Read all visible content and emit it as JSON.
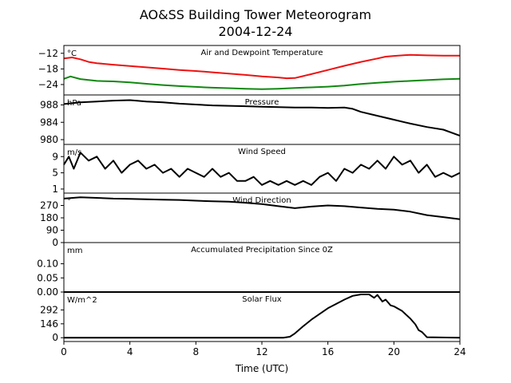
{
  "title_line1": "AO&SS Building Tower Meteorogram",
  "title_line2": "2004-12-24",
  "chart_data": {
    "type": "line",
    "x_axis": {
      "label": "Time (UTC)",
      "range": [
        0,
        24
      ],
      "ticks": [
        0,
        4,
        8,
        12,
        16,
        20,
        24
      ],
      "tick_labels": [
        "0",
        "4",
        "8",
        "12",
        "16",
        "20",
        "24"
      ]
    },
    "panels": [
      {
        "title": "Air and Dewpoint Temperature",
        "unit": "°C",
        "ylim": [
          -28,
          -9
        ],
        "yticks": [
          -12,
          -18,
          -24
        ],
        "ytick_labels": [
          "−12",
          "−18",
          "−24"
        ],
        "series": [
          {
            "color": "#ee1111",
            "x": [
              0,
              0.5,
              1,
              1.5,
              2,
              3,
              4,
              5,
              6,
              7,
              8,
              9,
              10,
              11,
              12,
              13,
              13.5,
              14,
              15,
              16,
              17,
              18,
              19,
              19.5,
              20,
              21,
              22,
              23,
              24
            ],
            "y": [
              -14,
              -13.6,
              -14.3,
              -15.3,
              -15.8,
              -16.4,
              -16.9,
              -17.4,
              -17.9,
              -18.4,
              -18.8,
              -19.3,
              -19.8,
              -20.3,
              -20.9,
              -21.3,
              -21.6,
              -21.5,
              -20.0,
              -18.4,
              -16.8,
              -15.3,
              -14.0,
              -13.3,
              -13.0,
              -12.6,
              -12.8,
              -12.9,
              -12.9
            ]
          },
          {
            "color": "#118811",
            "x": [
              0,
              0.4,
              1,
              2,
              3,
              4,
              5,
              6,
              7,
              8,
              9,
              10,
              11,
              12,
              13,
              14,
              15,
              16,
              17,
              18,
              19,
              20,
              21,
              22,
              23,
              24
            ],
            "y": [
              -21.8,
              -20.9,
              -21.9,
              -22.6,
              -22.8,
              -23.2,
              -23.7,
              -24.2,
              -24.6,
              -24.9,
              -25.2,
              -25.4,
              -25.6,
              -25.8,
              -25.6,
              -25.3,
              -25.1,
              -24.8,
              -24.4,
              -23.8,
              -23.3,
              -22.9,
              -22.6,
              -22.3,
              -22.0,
              -21.8
            ]
          }
        ]
      },
      {
        "title": "Pressure",
        "unit": "hPa",
        "ylim": [
          978.9,
          990.3
        ],
        "yticks": [
          988,
          984,
          980
        ],
        "ytick_labels": [
          "988",
          "984",
          "980"
        ],
        "series": [
          {
            "color": "#000000",
            "x": [
              0,
              1,
              2,
              3,
              4,
              5,
              6,
              7,
              8,
              9,
              10,
              11,
              12,
              13,
              14,
              15,
              16,
              17,
              17.5,
              18,
              19,
              20,
              21,
              22,
              23,
              24
            ],
            "y": [
              988.2,
              988.6,
              988.8,
              989.0,
              989.1,
              988.8,
              988.6,
              988.3,
              988.1,
              987.9,
              987.8,
              987.7,
              987.6,
              987.5,
              987.4,
              987.4,
              987.3,
              987.4,
              987.1,
              986.4,
              985.5,
              984.6,
              983.7,
              982.9,
              982.3,
              980.9
            ]
          }
        ]
      },
      {
        "title": "Wind Speed",
        "unit": "m/s",
        "ylim": [
          0,
          12
        ],
        "yticks": [
          9,
          5,
          1
        ],
        "ytick_labels": [
          "9",
          "5",
          "1"
        ],
        "series": [
          {
            "color": "#000000",
            "x": [
              0,
              0.3,
              0.6,
              1,
              1.5,
              2,
              2.5,
              3,
              3.5,
              4,
              4.5,
              5,
              5.5,
              6,
              6.5,
              7,
              7.5,
              8,
              8.5,
              9,
              9.5,
              10,
              10.5,
              11,
              11.5,
              12,
              12.5,
              13,
              13.5,
              14,
              14.5,
              15,
              15.5,
              16,
              16.5,
              17,
              17.5,
              18,
              18.5,
              19,
              19.5,
              20,
              20.5,
              21,
              21.5,
              22,
              22.5,
              23,
              23.5,
              24
            ],
            "y": [
              7,
              9,
              6,
              10,
              8,
              9,
              6,
              8,
              5,
              7,
              8,
              6,
              7,
              5,
              6,
              4,
              6,
              5,
              4,
              6,
              4,
              5,
              3,
              3,
              4,
              2,
              3,
              2,
              3,
              2,
              3,
              2,
              4,
              5,
              3,
              6,
              5,
              7,
              6,
              8,
              6,
              9,
              7,
              8,
              5,
              7,
              4,
              5,
              4,
              5
            ]
          }
        ]
      },
      {
        "title": "Wind Direction",
        "unit": "°",
        "ylim": [
          0,
          360
        ],
        "yticks": [
          270,
          180,
          90,
          0
        ],
        "ytick_labels": [
          "270",
          "180",
          "90",
          "0"
        ],
        "series": [
          {
            "color": "#000000",
            "x": [
              0,
              1,
              2,
              3,
              4,
              5,
              6,
              7,
              8,
              9,
              10,
              11,
              12,
              13,
              14,
              15,
              16,
              17,
              18,
              19,
              20,
              21,
              22,
              23,
              24
            ],
            "y": [
              320,
              330,
              325,
              320,
              318,
              315,
              312,
              310,
              305,
              300,
              298,
              290,
              280,
              265,
              250,
              262,
              270,
              265,
              255,
              245,
              240,
              225,
              200,
              185,
              170
            ]
          }
        ]
      },
      {
        "title": "Accumulated Precipitation Since 0Z",
        "unit": "mm",
        "ylim": [
          0,
          0.175
        ],
        "yticks": [
          0.1,
          0.05,
          0.0
        ],
        "ytick_labels": [
          "0.10",
          "0.05",
          "0.00"
        ],
        "series": [
          {
            "color": "#000000",
            "x": [
              0,
              24
            ],
            "y": [
              0,
              0
            ]
          }
        ]
      },
      {
        "title": "Solar Flux",
        "unit": "W/m^2",
        "ylim": [
          -40,
          480
        ],
        "yticks": [
          292,
          146,
          0
        ],
        "ytick_labels": [
          "292",
          "146",
          "0"
        ],
        "series": [
          {
            "color": "#000000",
            "x": [
              0,
              13.3,
              13.7,
              14,
              14.5,
              15,
              16,
              17,
              17.5,
              18,
              18.5,
              18.8,
              19,
              19.3,
              19.5,
              19.8,
              20,
              20.5,
              21,
              21.3,
              21.5,
              21.7,
              22,
              24
            ],
            "y": [
              0,
              0,
              10,
              45,
              120,
              190,
              310,
              400,
              440,
              455,
              455,
              420,
              450,
              380,
              400,
              340,
              330,
              280,
              200,
              140,
              80,
              60,
              5,
              0
            ]
          }
        ]
      }
    ]
  }
}
